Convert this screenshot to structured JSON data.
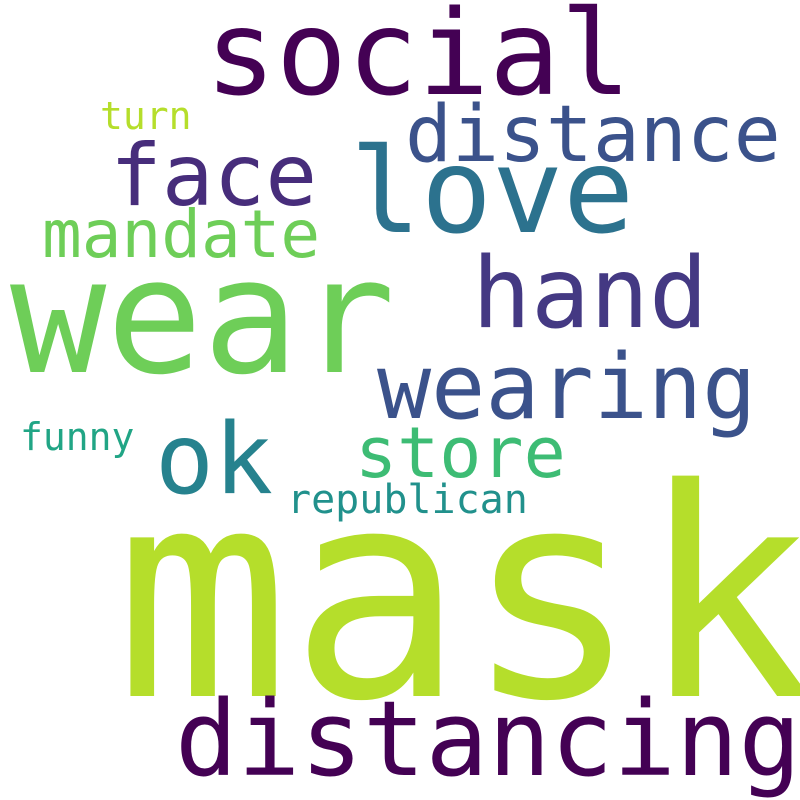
{
  "word_cloud": {
    "words": [
      {
        "text": "mask",
        "color": "#b5de2b"
      },
      {
        "text": "wear",
        "color": "#6ece58"
      },
      {
        "text": "social",
        "color": "#440154"
      },
      {
        "text": "distancing",
        "color": "#440154"
      },
      {
        "text": "love",
        "color": "#2c728e"
      },
      {
        "text": "hand",
        "color": "#443983"
      },
      {
        "text": "wearing",
        "color": "#3b528b"
      },
      {
        "text": "distance",
        "color": "#3b528b"
      },
      {
        "text": "face",
        "color": "#472d7b"
      },
      {
        "text": "ok",
        "color": "#26828e"
      },
      {
        "text": "mandate",
        "color": "#6ece58"
      },
      {
        "text": "store",
        "color": "#3dbc74"
      },
      {
        "text": "republican",
        "color": "#21918c"
      },
      {
        "text": "funny",
        "color": "#21a585"
      },
      {
        "text": "turn",
        "color": "#b5de2b"
      }
    ],
    "background": "#ffffff"
  }
}
